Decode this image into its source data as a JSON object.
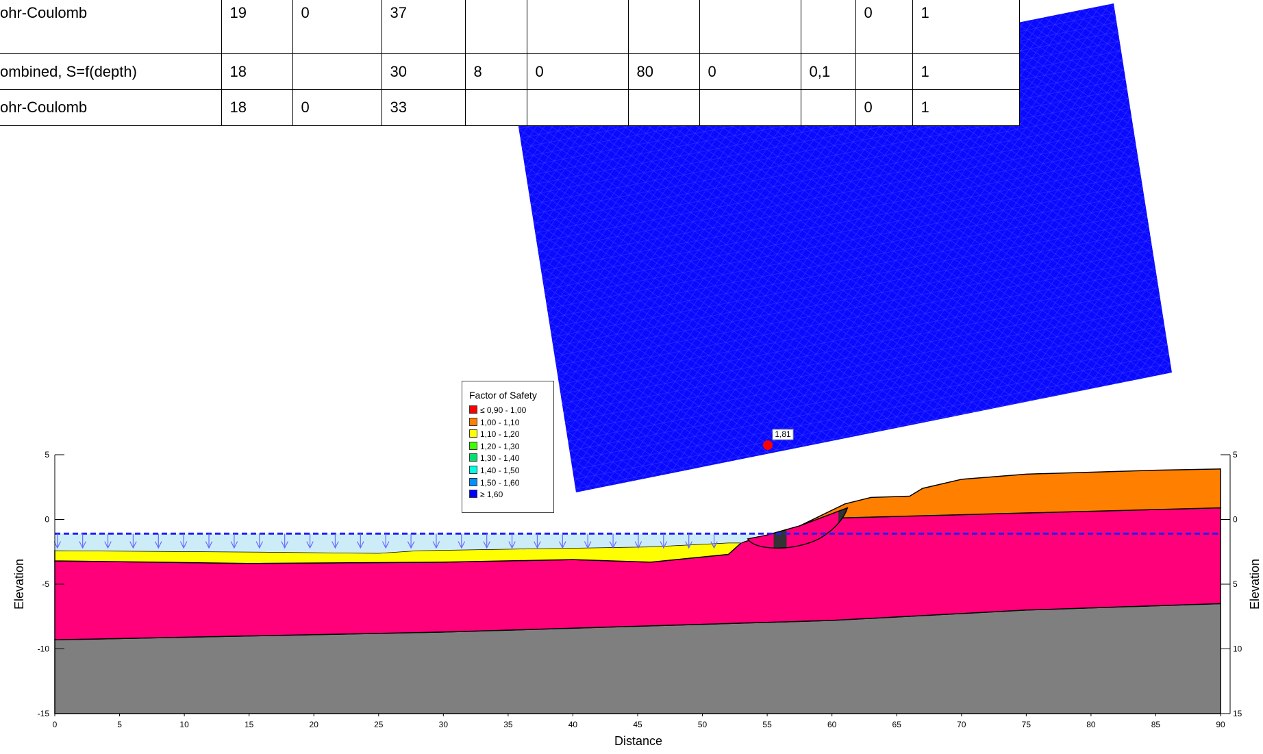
{
  "table": {
    "rows": [
      [
        "ohr-Coulomb",
        "19",
        "0",
        "37",
        "0",
        "1"
      ],
      [
        "ombined, S=f(depth)",
        "18",
        "30",
        "8",
        "0",
        "80",
        "0",
        "0,1",
        "1"
      ],
      [
        "ohr-Coulomb",
        "18",
        "0",
        "33",
        "0",
        "1"
      ]
    ]
  },
  "legend": {
    "title": "Factor of Safety",
    "items": [
      {
        "label": "≤ 0,90 - 1,00",
        "color": "#ff0000"
      },
      {
        "label": "1,00 - 1,10",
        "color": "#ff8000"
      },
      {
        "label": "1,10 - 1,20",
        "color": "#ffff00"
      },
      {
        "label": "1,20 - 1,30",
        "color": "#40ff00"
      },
      {
        "label": "1,30 - 1,40",
        "color": "#00e070"
      },
      {
        "label": "1,40 - 1,50",
        "color": "#00ffe0"
      },
      {
        "label": "1,50 - 1,60",
        "color": "#0090ff"
      },
      {
        "label": "≥ 1,60",
        "color": "#0000ff"
      }
    ]
  },
  "result_label": "1,81",
  "axes": {
    "x_label": "Distance",
    "y_label_left": "Elevation",
    "y_label_right": "Elevation",
    "xlim": [
      0,
      90
    ],
    "ylim": [
      -15,
      5
    ],
    "xticks": [
      0,
      5,
      10,
      15,
      20,
      25,
      30,
      35,
      40,
      45,
      50,
      55,
      60,
      65,
      70,
      75,
      80,
      85,
      90
    ],
    "yticks_left": [
      5,
      0,
      -5,
      -10,
      -15
    ],
    "yticks_right": [
      5,
      0,
      {
        "value": -5,
        "label": "5"
      },
      {
        "value": -10,
        "label": "10"
      },
      {
        "value": -15,
        "label": "15"
      }
    ]
  }
}
